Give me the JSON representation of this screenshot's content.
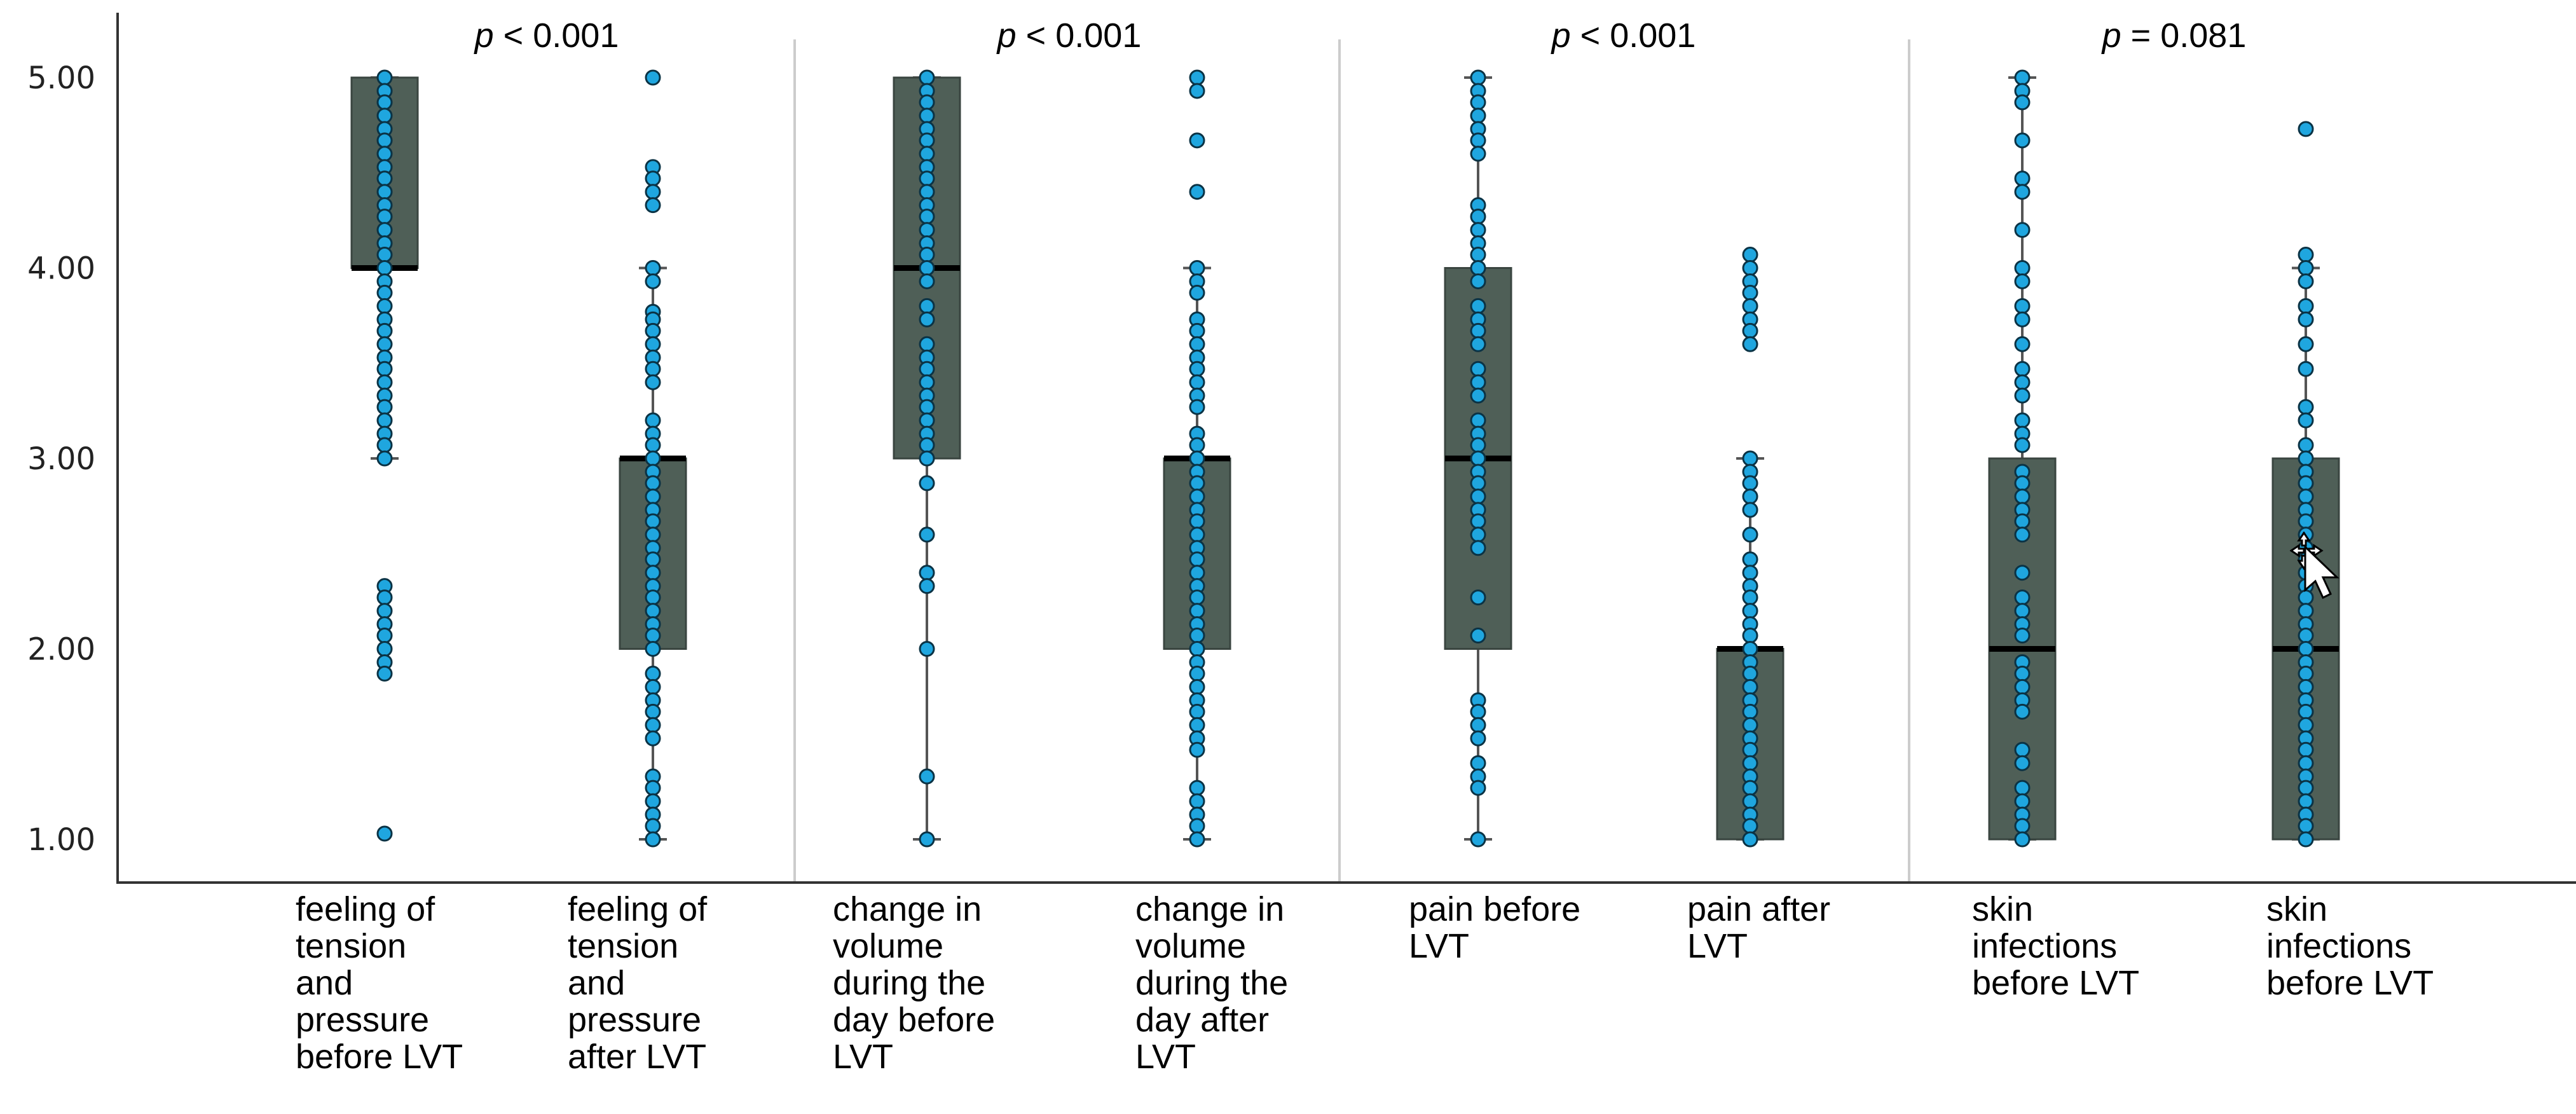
{
  "chart_data": {
    "type": "box",
    "y_ticks": [
      "1.00",
      "2.00",
      "3.00",
      "4.00",
      "5.00"
    ],
    "ylim": [
      1,
      5
    ],
    "grid": false,
    "colors": {
      "box": "#4f5f57",
      "point": "#1fa6df",
      "point_edge": "#0b3345",
      "whisker": "#555555",
      "separator": "#cccccc"
    },
    "pvalues": [
      {
        "p": "p",
        "rest": " < 0.001"
      },
      {
        "p": "p",
        "rest": " < 0.001"
      },
      {
        "p": "p",
        "rest": " < 0.001"
      },
      {
        "p": "p",
        "rest": " = 0.081"
      }
    ],
    "groups": [
      {
        "label": [
          "feeling of",
          "tension",
          "and",
          "pressure",
          "before LVT"
        ],
        "box": {
          "min": 3,
          "q1": 4,
          "median": 4,
          "q3": 5,
          "max": 5
        },
        "points": [
          5.0,
          4.93,
          4.87,
          4.8,
          4.73,
          4.67,
          4.6,
          4.53,
          4.47,
          4.4,
          4.33,
          4.27,
          4.2,
          4.13,
          4.07,
          4.0,
          3.93,
          3.87,
          3.8,
          3.73,
          3.67,
          3.6,
          3.53,
          3.47,
          3.4,
          3.33,
          3.27,
          3.2,
          3.13,
          3.07,
          3.0,
          2.33,
          2.27,
          2.2,
          2.13,
          2.07,
          2.0,
          1.93,
          1.87,
          1.03
        ]
      },
      {
        "label": [
          "feeling of",
          "tension",
          "and",
          "pressure",
          "after LVT"
        ],
        "box": {
          "min": 1,
          "q1": 2,
          "median": 3,
          "q3": 3,
          "max": 4
        },
        "points": [
          5.0,
          4.53,
          4.47,
          4.4,
          4.33,
          4.0,
          3.93,
          3.77,
          3.73,
          3.67,
          3.6,
          3.53,
          3.47,
          3.4,
          3.2,
          3.13,
          3.07,
          3.0,
          2.93,
          2.87,
          2.8,
          2.73,
          2.67,
          2.6,
          2.53,
          2.47,
          2.4,
          2.33,
          2.27,
          2.2,
          2.13,
          2.07,
          2.0,
          1.87,
          1.8,
          1.73,
          1.67,
          1.6,
          1.53,
          1.33,
          1.27,
          1.2,
          1.13,
          1.07,
          1.0
        ]
      },
      {
        "label": [
          "change in",
          "volume",
          "during the",
          "day before",
          "LVT"
        ],
        "box": {
          "min": 1,
          "q1": 3,
          "median": 4,
          "q3": 5,
          "max": 5
        },
        "points": [
          5.0,
          4.93,
          4.87,
          4.8,
          4.73,
          4.67,
          4.6,
          4.53,
          4.47,
          4.4,
          4.33,
          4.27,
          4.2,
          4.13,
          4.07,
          4.0,
          3.93,
          3.8,
          3.73,
          3.6,
          3.53,
          3.47,
          3.4,
          3.33,
          3.27,
          3.2,
          3.13,
          3.07,
          3.0,
          2.87,
          2.6,
          2.4,
          2.33,
          2.0,
          1.33,
          1.0
        ]
      },
      {
        "label": [
          "change in",
          "volume",
          "during the",
          "day after",
          "LVT"
        ],
        "box": {
          "min": 1,
          "q1": 2,
          "median": 3,
          "q3": 3,
          "max": 4
        },
        "points": [
          5.0,
          4.93,
          4.67,
          4.4,
          4.0,
          3.93,
          3.87,
          3.73,
          3.67,
          3.6,
          3.53,
          3.47,
          3.4,
          3.33,
          3.27,
          3.13,
          3.07,
          3.0,
          2.93,
          2.87,
          2.8,
          2.73,
          2.67,
          2.6,
          2.53,
          2.47,
          2.4,
          2.33,
          2.27,
          2.2,
          2.13,
          2.07,
          2.0,
          1.93,
          1.87,
          1.8,
          1.73,
          1.67,
          1.6,
          1.53,
          1.47,
          1.27,
          1.2,
          1.13,
          1.07,
          1.0
        ]
      },
      {
        "label": [
          "pain before",
          "LVT"
        ],
        "box": {
          "min": 1,
          "q1": 2,
          "median": 3,
          "q3": 4,
          "max": 5
        },
        "points": [
          5.0,
          4.93,
          4.87,
          4.8,
          4.73,
          4.67,
          4.6,
          4.33,
          4.27,
          4.2,
          4.13,
          4.07,
          4.0,
          3.93,
          3.8,
          3.73,
          3.67,
          3.6,
          3.47,
          3.4,
          3.33,
          3.2,
          3.13,
          3.07,
          3.0,
          2.93,
          2.87,
          2.8,
          2.73,
          2.67,
          2.6,
          2.53,
          2.27,
          2.07,
          1.73,
          1.67,
          1.6,
          1.53,
          1.4,
          1.33,
          1.27,
          1.0
        ]
      },
      {
        "label": [
          "pain after",
          "LVT"
        ],
        "box": {
          "min": 1,
          "q1": 1,
          "median": 2,
          "q3": 2,
          "max": 3
        },
        "points": [
          4.07,
          4.0,
          3.93,
          3.87,
          3.8,
          3.73,
          3.67,
          3.6,
          3.0,
          2.93,
          2.87,
          2.8,
          2.73,
          2.6,
          2.47,
          2.4,
          2.33,
          2.27,
          2.2,
          2.13,
          2.07,
          2.0,
          1.93,
          1.87,
          1.8,
          1.73,
          1.67,
          1.6,
          1.53,
          1.47,
          1.4,
          1.33,
          1.27,
          1.2,
          1.13,
          1.07,
          1.0
        ]
      },
      {
        "label": [
          "skin",
          "infections",
          "before LVT"
        ],
        "box": {
          "min": 1,
          "q1": 1,
          "median": 2,
          "q3": 3,
          "max": 5
        },
        "points": [
          5.0,
          4.93,
          4.87,
          4.67,
          4.47,
          4.4,
          4.2,
          4.0,
          3.93,
          3.8,
          3.73,
          3.6,
          3.47,
          3.4,
          3.33,
          3.2,
          3.13,
          3.07,
          2.93,
          2.87,
          2.8,
          2.73,
          2.67,
          2.6,
          2.4,
          2.27,
          2.2,
          2.13,
          2.07,
          1.93,
          1.87,
          1.8,
          1.73,
          1.67,
          1.47,
          1.4,
          1.27,
          1.2,
          1.13,
          1.07,
          1.0
        ]
      },
      {
        "label": [
          "skin",
          "infections",
          "before LVT"
        ],
        "box": {
          "min": 1,
          "q1": 1,
          "median": 2,
          "q3": 3,
          "max": 4
        },
        "points": [
          4.73,
          4.07,
          4.0,
          3.93,
          3.8,
          3.73,
          3.6,
          3.47,
          3.27,
          3.2,
          3.07,
          3.0,
          2.93,
          2.87,
          2.8,
          2.73,
          2.67,
          2.6,
          2.53,
          2.47,
          2.4,
          2.33,
          2.27,
          2.2,
          2.13,
          2.07,
          2.0,
          1.93,
          1.87,
          1.8,
          1.73,
          1.67,
          1.6,
          1.53,
          1.47,
          1.4,
          1.33,
          1.27,
          1.2,
          1.13,
          1.07,
          1.0
        ]
      }
    ]
  }
}
